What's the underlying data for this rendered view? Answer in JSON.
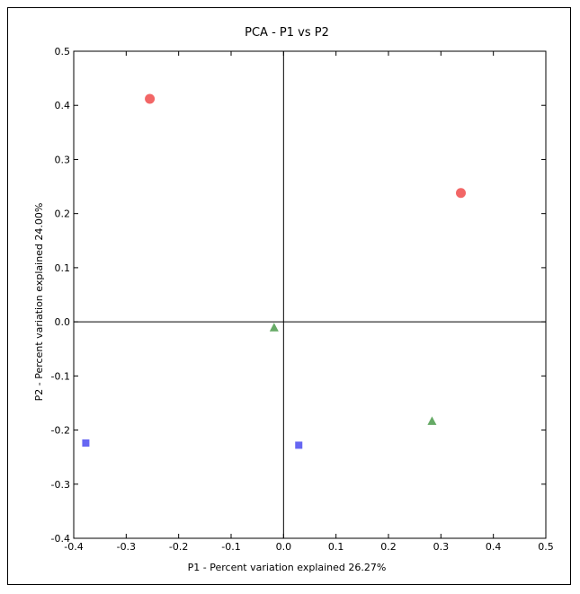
{
  "chart_data": {
    "type": "scatter",
    "title": "PCA - P1 vs P2",
    "xlabel": "P1 - Percent variation explained 26.27%",
    "ylabel": "P2 - Percent variation explained 24.00%",
    "xlim": [
      -0.4,
      0.5
    ],
    "ylim": [
      -0.4,
      0.5
    ],
    "xticks": [
      "-0.4",
      "-0.3",
      "-0.2",
      "-0.1",
      "0.0",
      "0.1",
      "0.2",
      "0.3",
      "0.4",
      "0.5"
    ],
    "yticks": [
      "-0.4",
      "-0.3",
      "-0.2",
      "-0.1",
      "0.0",
      "0.1",
      "0.2",
      "0.3",
      "0.4",
      "0.5"
    ],
    "grid": false,
    "zero_lines": true,
    "series": [
      {
        "marker": "circle",
        "color": "#f26666",
        "points": [
          {
            "x": -0.255,
            "y": 0.412
          },
          {
            "x": 0.338,
            "y": 0.238
          }
        ]
      },
      {
        "marker": "triangle",
        "color": "#66aa66",
        "points": [
          {
            "x": -0.018,
            "y": -0.011
          },
          {
            "x": 0.283,
            "y": -0.184
          }
        ]
      },
      {
        "marker": "square",
        "color": "#6666f2",
        "points": [
          {
            "x": -0.377,
            "y": -0.224
          },
          {
            "x": 0.029,
            "y": -0.228
          }
        ]
      }
    ]
  }
}
